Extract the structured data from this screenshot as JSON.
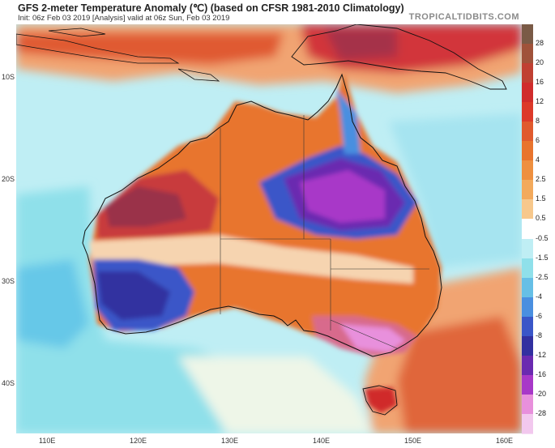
{
  "header": {
    "title": "GFS 2-meter Temperature Anomaly (℃) (based on CFSR 1981-2010 Climatology)",
    "subtitle": "Init: 06z Feb 03 2019   [Analysis]   valid at 06z Sun, Feb 03 2019",
    "brand": "TROPICALTIDBITS.COM"
  },
  "axes": {
    "lat_labels": [
      "10S",
      "20S",
      "30S",
      "40S"
    ],
    "lon_labels": [
      "110E",
      "120E",
      "130E",
      "140E",
      "150E",
      "160E"
    ]
  },
  "colorbar": {
    "labels": [
      "28",
      "20",
      "16",
      "12",
      "8",
      "6",
      "4",
      "2.5",
      "1.5",
      "0.5",
      "-0.5",
      "-1.5",
      "-2.5",
      "-4",
      "-6",
      "-8",
      "-12",
      "-16",
      "-20",
      "-28"
    ],
    "colors": [
      "#7a5a46",
      "#a0523a",
      "#c04032",
      "#d02c2c",
      "#dc3a2a",
      "#e05a2e",
      "#e8742e",
      "#ee9040",
      "#f3aa5c",
      "#f7c88c",
      "#ffffff",
      "#bfeef4",
      "#8fe0ea",
      "#66bfe6",
      "#4a8fe0",
      "#3a56c8",
      "#3230a0",
      "#6a2ab0",
      "#a838c8",
      "#e890dc",
      "#f2c8ee"
    ]
  }
}
